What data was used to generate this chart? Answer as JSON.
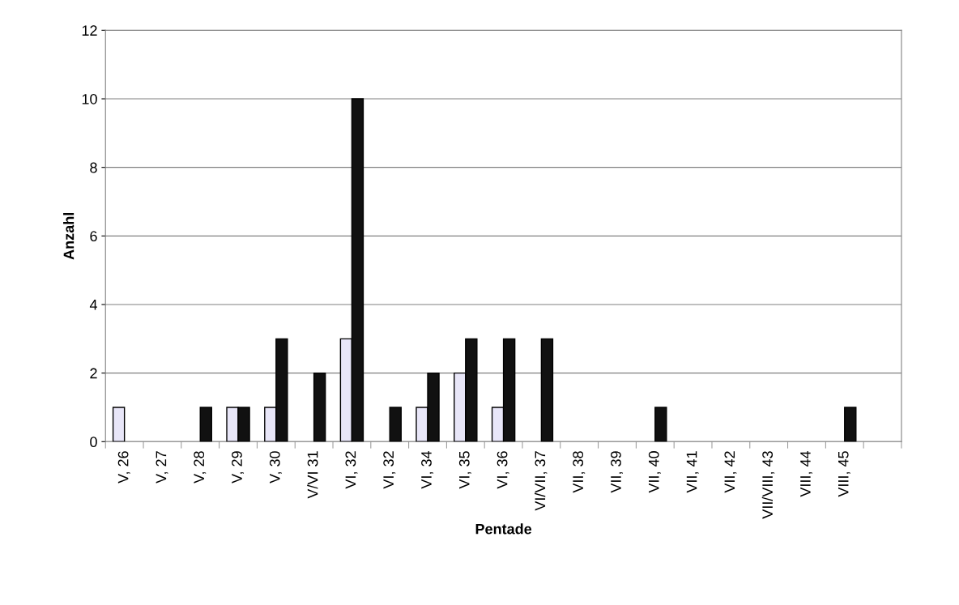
{
  "chart_data": {
    "type": "bar",
    "xlabel": "Pentade",
    "ylabel": "Anzahl",
    "categories": [
      "V, 26",
      "V, 27",
      "V, 28",
      "V, 29",
      "V, 30",
      "V/VI 31",
      "VI, 32",
      "VI, 32",
      "VI, 34",
      "VI, 35",
      "VI, 36",
      "VI/VII, 37",
      "VII, 38",
      "VII, 39",
      "VII, 40",
      "VII, 41",
      "VII, 42",
      "VII/VIII, 43",
      "VIII, 44",
      "VIII, 45",
      null
    ],
    "series": [
      {
        "color": "#e8e6f8",
        "values": [
          1,
          0,
          0,
          1,
          1,
          0,
          3,
          0,
          1,
          2,
          1,
          0,
          0,
          0,
          0,
          0,
          0,
          0,
          0,
          0,
          null
        ]
      },
      {
        "color": "#111111",
        "values": [
          0,
          0,
          1,
          1,
          3,
          2,
          10,
          1,
          2,
          3,
          3,
          3,
          0,
          0,
          1,
          0,
          0,
          0,
          0,
          1,
          null
        ]
      }
    ],
    "ylim": [
      0,
      12
    ],
    "yticks": [
      0,
      2,
      4,
      6,
      8,
      10,
      12
    ],
    "grid": "y"
  }
}
